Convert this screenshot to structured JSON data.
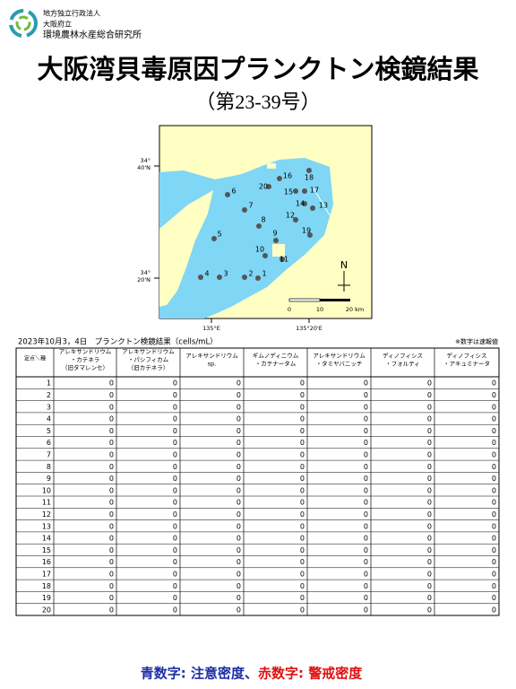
{
  "header": {
    "org": [
      "地方独立行政法人",
      "大阪府立",
      "環境農林水産総合研究所"
    ],
    "title": "大阪湾貝毒原因プランクトン検鏡結果",
    "subtitle": "（第23-39号）"
  },
  "map": {
    "stations": [
      "1",
      "2",
      "3",
      "4",
      "5",
      "6",
      "7",
      "8",
      "9",
      "10",
      "11",
      "12",
      "13",
      "14",
      "15",
      "16",
      "17",
      "18",
      "19",
      "20"
    ],
    "lat_labels": [
      [
        "34°",
        "40'N"
      ],
      [
        "34°",
        "20'N"
      ]
    ],
    "lon_labels": [
      "135°E",
      "135°20'E"
    ],
    "scale_labels": [
      "0",
      "10",
      "20 km"
    ],
    "north": "N"
  },
  "table": {
    "caption": "2023年10月3，4日　プランクトン検鏡結果（cells/mL）",
    "note": "※数字は速報値",
    "corner": "定点＼種",
    "columns": [
      [
        "アレキサンドリウム",
        "・カテネラ",
        "（旧タマレンセ）"
      ],
      [
        "アレキサンドリウム",
        "・パシフィカム",
        "（旧カテネラ）"
      ],
      [
        "アレキサンドリウム",
        "sp."
      ],
      [
        "ギムノディニウム",
        "・カテナータム"
      ],
      [
        "アレキサンドリウム",
        "・タミヤバニッチ"
      ],
      [
        "ディノフィシス",
        "・フォルティ"
      ],
      [
        "ディノフィシス",
        "・アキュミナータ"
      ]
    ],
    "rows": [
      [
        1,
        0,
        0,
        0,
        0,
        0,
        0,
        0
      ],
      [
        2,
        0,
        0,
        0,
        0,
        0,
        0,
        0
      ],
      [
        3,
        0,
        0,
        0,
        0,
        0,
        0,
        0
      ],
      [
        4,
        0,
        0,
        0,
        0,
        0,
        0,
        0
      ],
      [
        5,
        0,
        0,
        0,
        0,
        0,
        0,
        0
      ],
      [
        6,
        0,
        0,
        0,
        0,
        0,
        0,
        0
      ],
      [
        7,
        0,
        0,
        0,
        0,
        0,
        0,
        0
      ],
      [
        8,
        0,
        0,
        0,
        0,
        0,
        0,
        0
      ],
      [
        9,
        0,
        0,
        0,
        0,
        0,
        0,
        0
      ],
      [
        10,
        0,
        0,
        0,
        0,
        0,
        0,
        0
      ],
      [
        11,
        0,
        0,
        0,
        0,
        0,
        0,
        0
      ],
      [
        12,
        0,
        0,
        0,
        0,
        0,
        0,
        0
      ],
      [
        13,
        0,
        0,
        0,
        0,
        0,
        0,
        0
      ],
      [
        14,
        0,
        0,
        0,
        0,
        0,
        0,
        0
      ],
      [
        15,
        0,
        0,
        0,
        0,
        0,
        0,
        0
      ],
      [
        16,
        0,
        0,
        0,
        0,
        0,
        0,
        0
      ],
      [
        17,
        0,
        0,
        0,
        0,
        0,
        0,
        0
      ],
      [
        18,
        0,
        0,
        0,
        0,
        0,
        0,
        0
      ],
      [
        19,
        0,
        0,
        0,
        0,
        0,
        0,
        0
      ],
      [
        20,
        0,
        0,
        0,
        0,
        0,
        0,
        0
      ]
    ]
  },
  "footer": {
    "attention": "青数字: 注意密度、",
    "warning": "赤数字: 警戒密度"
  }
}
